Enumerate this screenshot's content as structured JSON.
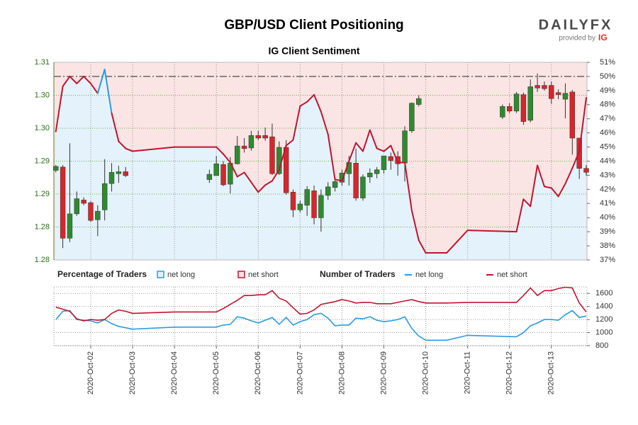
{
  "title": "GBP/USD Client Positioning",
  "logo": {
    "brand": "DAILYFX",
    "provided_by": "provided by",
    "provider": "IG"
  },
  "chart_data": [
    {
      "type": "candlestick",
      "subtitle": "IG Client Sentiment",
      "x": [
        0.1667,
        0.3333,
        0.5,
        0.6667,
        0.8333,
        1,
        1.1667,
        1.3333,
        1.5,
        1.6667,
        1.8333,
        3.8333,
        4,
        4.1667,
        4.3333,
        4.5,
        4.6667,
        4.8333,
        5,
        5.1667,
        5.3333,
        5.5,
        5.6667,
        5.8333,
        6,
        6.1667,
        6.3333,
        6.5,
        6.6667,
        6.8333,
        7,
        7.1667,
        7.3333,
        7.5,
        7.6667,
        7.8333,
        8,
        8.1667,
        8.3333,
        8.5,
        8.6667,
        8.8333,
        10.8333,
        11,
        11.1667,
        11.3333,
        11.5,
        11.6667,
        11.8333,
        12,
        12.1667,
        12.3333,
        12.5,
        12.6667,
        12.8333
      ],
      "open": [
        1.2936,
        1.2941,
        1.2833,
        1.287,
        1.2891,
        1.2887,
        1.2861,
        1.2876,
        1.2916,
        1.2931,
        1.2934,
        1.2922,
        1.2928,
        1.2945,
        1.2915,
        1.2946,
        1.2973,
        1.297,
        1.2989,
        1.2989,
        1.2987,
        1.2931,
        1.2971,
        1.2903,
        1.2876,
        1.2883,
        1.2905,
        1.2864,
        1.2898,
        1.291,
        1.2918,
        1.2931,
        1.2947,
        1.2894,
        1.2926,
        1.2931,
        1.2937,
        1.2957,
        1.2957,
        1.2947,
        1.2996,
        1.3036,
        1.3017,
        1.3033,
        1.3026,
        1.3051,
        1.3012,
        1.3065,
        1.3065,
        1.3065,
        1.3054,
        1.3044,
        1.3055,
        1.2985,
        1.2939
      ],
      "high": [
        1.2944,
        1.2944,
        1.2977,
        1.2904,
        1.2895,
        1.2889,
        1.2883,
        1.2953,
        1.2947,
        1.2943,
        1.2941,
        1.2937,
        1.2958,
        1.295,
        1.2956,
        1.2988,
        1.2985,
        1.2996,
        1.2996,
        1.3001,
        1.3007,
        1.298,
        1.2982,
        1.2907,
        1.289,
        1.2912,
        1.2913,
        1.2907,
        1.2918,
        1.2926,
        1.2937,
        1.2958,
        1.2969,
        1.293,
        1.2939,
        1.2941,
        1.2958,
        1.2963,
        1.2965,
        1.3003,
        1.3039,
        1.305,
        1.3036,
        1.3038,
        1.3055,
        1.3054,
        1.3074,
        1.3083,
        1.3071,
        1.3071,
        1.3059,
        1.3068,
        1.3058,
        1.2985,
        1.2944
      ],
      "low": [
        1.2933,
        1.2818,
        1.2827,
        1.2867,
        1.2883,
        1.2858,
        1.2836,
        1.286,
        1.2904,
        1.2917,
        1.2926,
        1.2917,
        1.2928,
        1.2912,
        1.2901,
        1.2945,
        1.2963,
        1.2966,
        1.2982,
        1.2981,
        1.2929,
        1.2929,
        1.2899,
        1.2865,
        1.2872,
        1.2867,
        1.2854,
        1.2843,
        1.2891,
        1.2904,
        1.2913,
        1.2913,
        1.289,
        1.289,
        1.2917,
        1.2924,
        1.2931,
        1.2937,
        1.2928,
        1.2919,
        1.2993,
        1.3033,
        1.3014,
        1.3023,
        1.3023,
        1.3005,
        1.3009,
        1.3055,
        1.3057,
        1.3037,
        1.3044,
        1.3015,
        1.296,
        1.2923,
        1.2928
      ],
      "close": [
        1.2942,
        1.2833,
        1.287,
        1.2893,
        1.2886,
        1.286,
        1.2874,
        1.2916,
        1.2933,
        1.2934,
        1.2928,
        1.293,
        1.2946,
        1.2914,
        1.2947,
        1.2973,
        1.2969,
        1.2989,
        1.2985,
        1.2985,
        1.2931,
        1.2971,
        1.2902,
        1.2876,
        1.2885,
        1.2907,
        1.2864,
        1.2898,
        1.2911,
        1.2919,
        1.2932,
        1.2948,
        1.2894,
        1.2926,
        1.2932,
        1.2937,
        1.2958,
        1.2951,
        1.2946,
        1.2996,
        1.3038,
        1.3045,
        1.3033,
        1.3026,
        1.3052,
        1.301,
        1.3063,
        1.3061,
        1.306,
        1.3045,
        1.3051,
        1.3053,
        1.2985,
        1.2939,
        1.2933
      ],
      "up_color": "#2f8a2f",
      "down_color": "#d7262a",
      "xlim": [
        0.12,
        12.85
      ],
      "xticks": [
        {
          "value": 1,
          "label": "2020-Oct-02"
        },
        {
          "value": 2,
          "label": "2020-Oct-03"
        },
        {
          "value": 3,
          "label": "2020-Oct-04"
        },
        {
          "value": 4,
          "label": "2020-Oct-05"
        },
        {
          "value": 5,
          "label": "2020-Oct-06"
        },
        {
          "value": 6,
          "label": "2020-Oct-07"
        },
        {
          "value": 7,
          "label": "2020-Oct-08"
        },
        {
          "value": 8,
          "label": "2020-Oct-09"
        },
        {
          "value": 9,
          "label": "2020-Oct-10"
        },
        {
          "value": 10,
          "label": "2020-Oct-11"
        },
        {
          "value": 11,
          "label": "2020-Oct-12"
        },
        {
          "value": 12,
          "label": "2020-Oct-13"
        }
      ],
      "ylim": [
        1.28,
        1.31
      ],
      "yticks": [
        {
          "value": 1.28,
          "label": "1.28"
        },
        {
          "value": 1.285,
          "label": "1.28"
        },
        {
          "value": 1.29,
          "label": "1.29"
        },
        {
          "value": 1.295,
          "label": "1.29"
        },
        {
          "value": 1.3,
          "label": "1.30"
        },
        {
          "value": 1.305,
          "label": "1.30"
        },
        {
          "value": 1.31,
          "label": "1.31"
        }
      ],
      "grid": true,
      "sentiment": {
        "legend_title": "Percentage of Traders",
        "series": [
          {
            "name": "net long",
            "color": "#2b9be0",
            "fill": "#e4f2fb"
          },
          {
            "name": "net short",
            "color": "#c0152f",
            "fill": "#fbe4e4"
          }
        ],
        "x": [
          0.1667,
          0.3333,
          0.5,
          0.6667,
          0.8333,
          1,
          1.1667,
          1.3333,
          1.5,
          1.6667,
          1.8333,
          2,
          3,
          4,
          4.1667,
          4.3333,
          4.5,
          4.6667,
          4.8333,
          5,
          5.1667,
          5.3333,
          5.5,
          5.6667,
          5.8333,
          6,
          6.1667,
          6.3333,
          6.5,
          6.6667,
          6.8333,
          7,
          7.1667,
          7.3333,
          7.5,
          7.6667,
          7.8333,
          8,
          8.1667,
          8.3333,
          8.5,
          8.6667,
          8.8333,
          9,
          9.5,
          10,
          11.1667,
          11.3333,
          11.5,
          11.6667,
          11.8333,
          12,
          12.1667,
          12.3333,
          12.5,
          12.6667,
          12.8333
        ],
        "values": [
          46.1,
          49.3,
          50.0,
          49.5,
          50.0,
          49.5,
          48.8,
          50.5,
          47.4,
          45.4,
          44.9,
          44.7,
          45.0,
          45.0,
          44.5,
          43.9,
          42.9,
          43.2,
          42.5,
          41.8,
          42.3,
          42.6,
          43.4,
          45.1,
          45.5,
          47.9,
          48.2,
          48.7,
          47.5,
          45.9,
          42.7,
          42.6,
          44.0,
          45.3,
          44.7,
          46.2,
          44.9,
          44.7,
          45.1,
          43.9,
          43.9,
          40.5,
          38.4,
          37.5,
          37.5,
          39.1,
          39.0,
          41.3,
          40.8,
          43.7,
          42.2,
          42.1,
          41.5,
          42.4,
          43.5,
          44.7,
          48.5
        ],
        "y2lim": [
          37,
          51
        ],
        "y2ticks": [
          {
            "value": 37,
            "label": "37%"
          },
          {
            "value": 38,
            "label": "38%"
          },
          {
            "value": 39,
            "label": "39%"
          },
          {
            "value": 40,
            "label": "40%"
          },
          {
            "value": 41,
            "label": "41%"
          },
          {
            "value": 42,
            "label": "42%"
          },
          {
            "value": 43,
            "label": "43%"
          },
          {
            "value": 44,
            "label": "44%"
          },
          {
            "value": 45,
            "label": "45%"
          },
          {
            "value": 46,
            "label": "46%"
          },
          {
            "value": 47,
            "label": "47%"
          },
          {
            "value": 48,
            "label": "48%"
          },
          {
            "value": 49,
            "label": "49%"
          },
          {
            "value": 50,
            "label": "50%"
          },
          {
            "value": 51,
            "label": "51%"
          }
        ],
        "reference_line": 50
      }
    },
    {
      "type": "line",
      "legend_title": "Number of Traders",
      "x": [
        0.1667,
        0.3333,
        0.5,
        0.6667,
        0.8333,
        1,
        1.1667,
        1.3333,
        1.5,
        1.6667,
        1.8333,
        2,
        3,
        4,
        4.1667,
        4.3333,
        4.5,
        4.6667,
        4.8333,
        5,
        5.1667,
        5.3333,
        5.5,
        5.6667,
        5.8333,
        6,
        6.1667,
        6.3333,
        6.5,
        6.6667,
        6.8333,
        7,
        7.1667,
        7.3333,
        7.5,
        7.6667,
        7.8333,
        8,
        8.1667,
        8.3333,
        8.5,
        8.6667,
        8.8333,
        9,
        9.5,
        10,
        11.1667,
        11.3333,
        11.5,
        11.6667,
        11.8333,
        12,
        12.1667,
        12.3333,
        12.5,
        12.6667,
        12.8333
      ],
      "series": [
        {
          "name": "net long",
          "color": "#2b9be0",
          "values": [
            1200,
            1326,
            1337,
            1200,
            1189,
            1179,
            1147,
            1200,
            1137,
            1095,
            1074,
            1053,
            1084,
            1084,
            1116,
            1126,
            1242,
            1221,
            1179,
            1147,
            1189,
            1232,
            1126,
            1232,
            1116,
            1168,
            1200,
            1274,
            1295,
            1221,
            1105,
            1116,
            1116,
            1221,
            1211,
            1242,
            1189,
            1168,
            1179,
            1200,
            1242,
            1063,
            947,
            884,
            884,
            958,
            937,
            1000,
            1105,
            1147,
            1200,
            1200,
            1189,
            1274,
            1337,
            1232,
            1253
          ]
        },
        {
          "name": "net short",
          "color": "#c0152f",
          "values": [
            1389,
            1358,
            1326,
            1211,
            1179,
            1200,
            1189,
            1200,
            1295,
            1347,
            1326,
            1295,
            1316,
            1316,
            1368,
            1432,
            1495,
            1568,
            1568,
            1579,
            1579,
            1642,
            1526,
            1484,
            1379,
            1284,
            1295,
            1347,
            1432,
            1453,
            1474,
            1505,
            1484,
            1453,
            1463,
            1463,
            1442,
            1442,
            1442,
            1463,
            1484,
            1505,
            1474,
            1453,
            1453,
            1463,
            1463,
            1568,
            1684,
            1568,
            1642,
            1642,
            1674,
            1695,
            1684,
            1453,
            1316
          ]
        }
      ],
      "y2lim": [
        800,
        1700
      ],
      "y2ticks": [
        800,
        1000,
        1200,
        1400,
        1600
      ],
      "grid": true
    }
  ]
}
